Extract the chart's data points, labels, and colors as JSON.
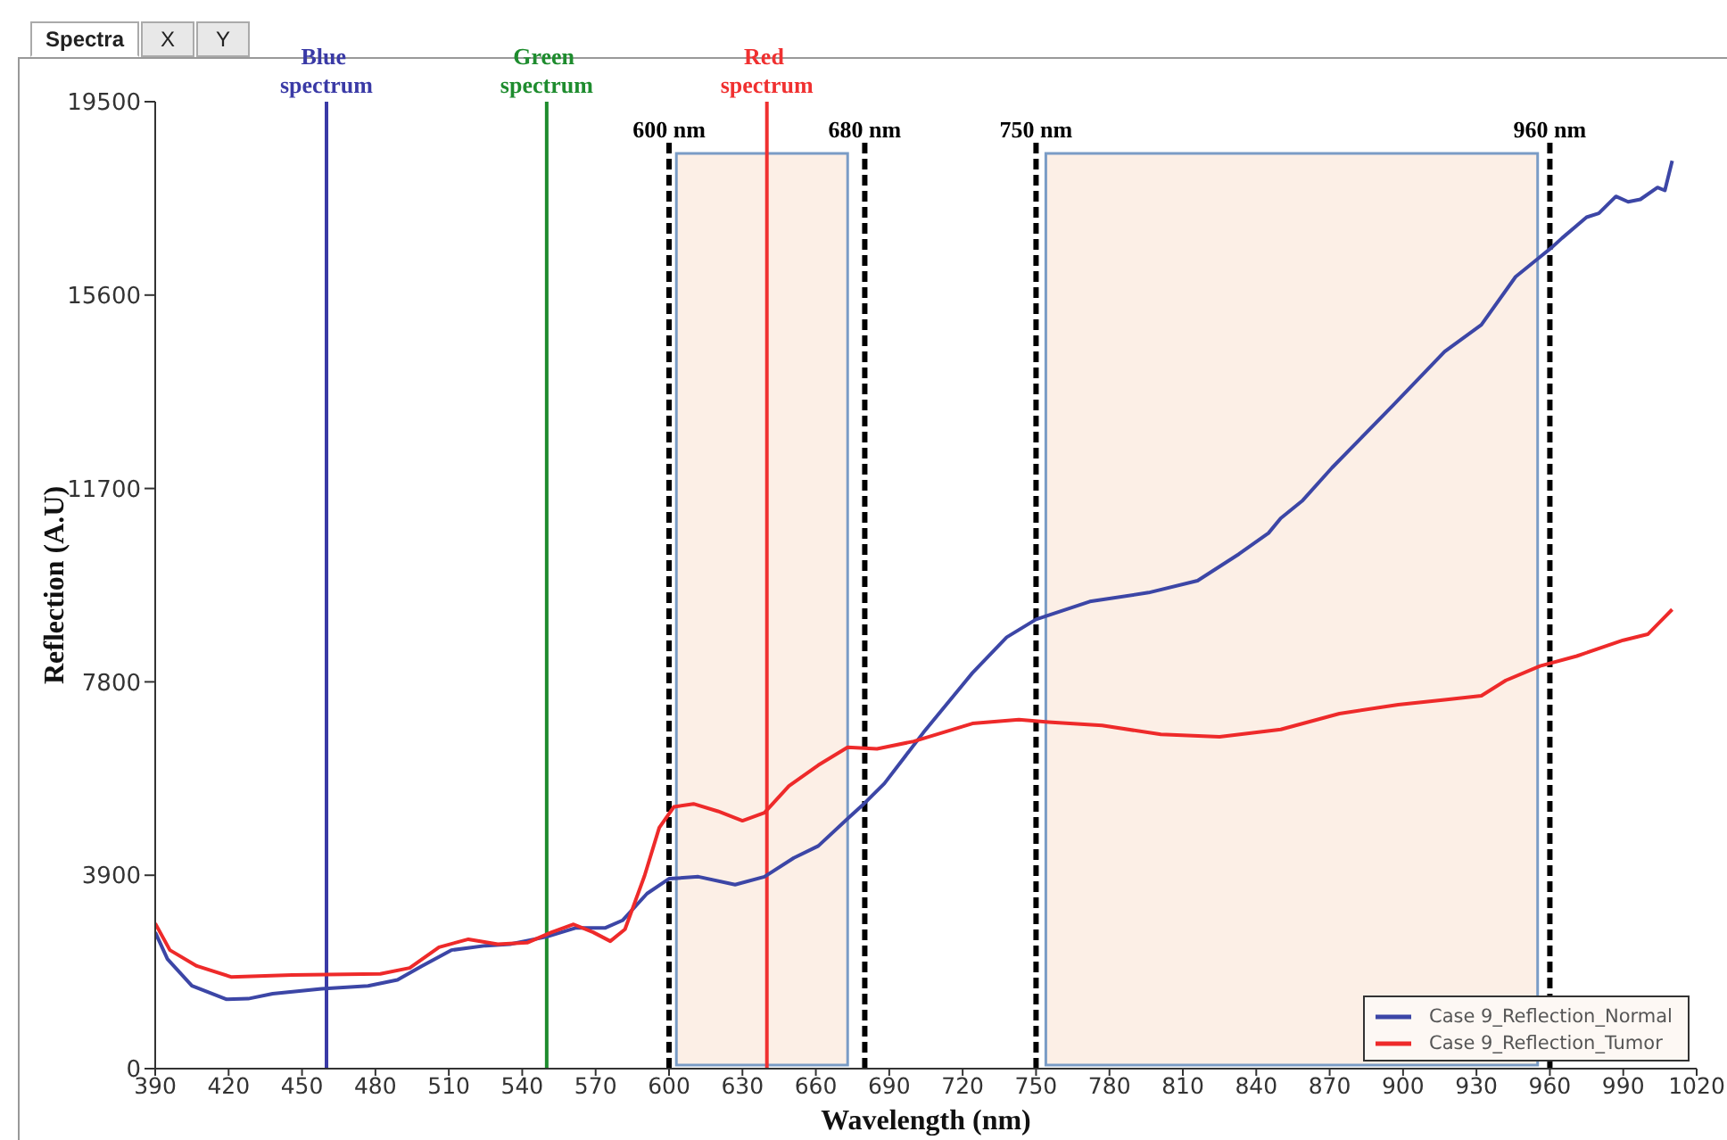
{
  "chart_data": {
    "type": "line",
    "xlabel": "Wavelength (nm)",
    "ylabel": "Reflection (A.U)",
    "annotations": [
      "Spectra",
      "X",
      "Y"
    ],
    "xlim": [
      390,
      1020
    ],
    "xticks": [
      390,
      420,
      450,
      480,
      510,
      540,
      570,
      600,
      630,
      660,
      690,
      720,
      750,
      780,
      810,
      840,
      870,
      900,
      930,
      960,
      990,
      1020
    ],
    "ylim": [
      0,
      19500
    ],
    "yticks": [
      0,
      3900,
      7800,
      11700,
      15600,
      19500
    ],
    "legend": "bottom right",
    "series": [
      {
        "name": "Case 9_Reflection_Normal",
        "color": "#3c46a6",
        "x": [
          390,
          395,
          405,
          419,
          428,
          438,
          458,
          477,
          489,
          499,
          511,
          525,
          535,
          550,
          562,
          574,
          581,
          591,
          600,
          612,
          627,
          639,
          651,
          661,
          673,
          679,
          688,
          704,
          724,
          738,
          750,
          772,
          796,
          816,
          833,
          845,
          850,
          859,
          871,
          896,
          917,
          932,
          946,
          955,
          961,
          965,
          975,
          980,
          987,
          992,
          997,
          1004,
          1007,
          1010
        ],
        "values": [
          2750,
          2210,
          1670,
          1400,
          1410,
          1510,
          1610,
          1670,
          1790,
          2070,
          2390,
          2480,
          2510,
          2660,
          2840,
          2840,
          2990,
          3530,
          3830,
          3870,
          3710,
          3870,
          4250,
          4490,
          5040,
          5310,
          5750,
          6780,
          7980,
          8700,
          9060,
          9420,
          9600,
          9840,
          10380,
          10800,
          11100,
          11460,
          12120,
          13380,
          14460,
          15000,
          15970,
          16330,
          16570,
          16750,
          17170,
          17250,
          17590,
          17480,
          17530,
          17770,
          17710,
          18310
        ]
      },
      {
        "name": "Case 9_Reflection_Tumor",
        "color": "#ee2a2a",
        "x": [
          390,
          396,
          407,
          421,
          446,
          482,
          494,
          506,
          518,
          530,
          542,
          552,
          561,
          569,
          576,
          582,
          590,
          596,
          602,
          610,
          620,
          630,
          639,
          649,
          661,
          673,
          685,
          700,
          724,
          743,
          755,
          777,
          801,
          825,
          850,
          874,
          898,
          917,
          932,
          942,
          956,
          971,
          990,
          1000,
          1006,
          1010
        ],
        "values": [
          2930,
          2390,
          2070,
          1850,
          1890,
          1910,
          2030,
          2450,
          2610,
          2510,
          2540,
          2750,
          2910,
          2750,
          2570,
          2810,
          3890,
          4860,
          5280,
          5340,
          5190,
          5000,
          5160,
          5700,
          6120,
          6480,
          6450,
          6600,
          6960,
          7040,
          6990,
          6920,
          6740,
          6690,
          6840,
          7160,
          7340,
          7440,
          7520,
          7830,
          8120,
          8320,
          8640,
          8760,
          9060,
          9260
        ]
      }
    ],
    "ref_lines": [
      {
        "axis": "x",
        "value": 460,
        "label": "Blue spectrum",
        "color": "#3a3aa6"
      },
      {
        "axis": "x",
        "value": 550,
        "label": "Green spectrum",
        "color": "#1e8c2e"
      },
      {
        "axis": "x",
        "value": 640,
        "label": "Red spectrum",
        "color": "#f03030"
      },
      {
        "axis": "x",
        "value": 600,
        "label": "600 nm",
        "color": "#000000",
        "line_style": "dashed"
      },
      {
        "axis": "x",
        "value": 680,
        "label": "680 nm",
        "color": "#000000",
        "line_style": "dashed"
      },
      {
        "axis": "x",
        "value": 750,
        "label": "750 nm",
        "color": "#000000",
        "line_style": "dashed"
      },
      {
        "axis": "x",
        "value": 960,
        "label": "960 nm",
        "color": "#000000",
        "line_style": "dashed"
      }
    ],
    "bands": [
      {
        "axis": "x",
        "from": 603,
        "to": 673,
        "color": "#fcefe6"
      },
      {
        "axis": "x",
        "from": 754,
        "to": 955,
        "color": "#fcefe6"
      }
    ]
  }
}
